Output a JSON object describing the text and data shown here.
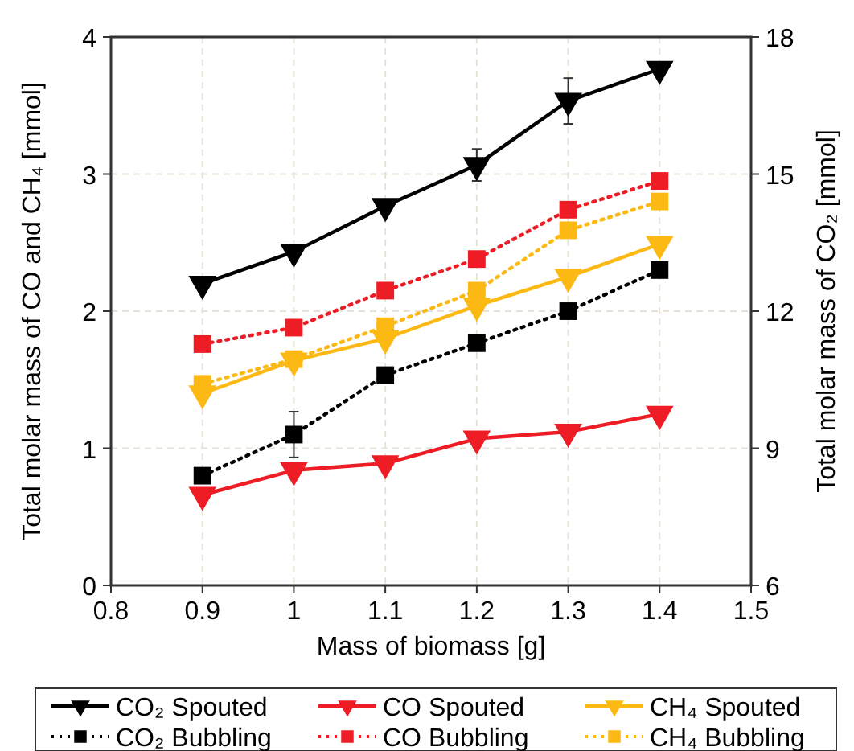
{
  "chart_data": {
    "type": "line",
    "xlabel": "Mass of biomass [g]",
    "ylabel": "Total molar mass of CO and CH₄ [mmol]",
    "y2label": "Total molar mass of CO₂ [mmol]",
    "x": [
      0.9,
      1.0,
      1.1,
      1.2,
      1.3,
      1.4
    ],
    "xlim": [
      0.8,
      1.5
    ],
    "xticks": [
      0.8,
      0.9,
      1,
      1.1,
      1.2,
      1.3,
      1.4,
      1.5
    ],
    "ylim": [
      0,
      4
    ],
    "yticks": [
      0,
      1,
      2,
      3,
      4
    ],
    "y2lim": [
      6,
      18
    ],
    "y2ticks": [
      6,
      9,
      12,
      15,
      18
    ],
    "grid": true,
    "legend": "bottom",
    "series": [
      {
        "name": "CO₂ Spouted",
        "color": "#000000",
        "axis": "y2",
        "marker": "triangle",
        "line_style": "solid",
        "values": [
          12.6,
          13.3,
          14.3,
          15.2,
          16.6,
          17.3
        ],
        "errors": [
          null,
          null,
          null,
          0.35,
          0.5,
          null
        ]
      },
      {
        "name": "CO Spouted",
        "color": "#ee1c25",
        "marker": "triangle",
        "line_style": "solid",
        "values": [
          0.66,
          0.84,
          0.89,
          1.07,
          1.12,
          1.25
        ]
      },
      {
        "name": "CH₄ Spouted",
        "color": "#fdb913",
        "marker": "triangle",
        "line_style": "solid",
        "values": [
          1.4,
          1.64,
          1.8,
          2.04,
          2.25,
          2.49
        ]
      },
      {
        "name": "CO₂ Bubbling",
        "color": "#000000",
        "axis": "y2",
        "marker": "square",
        "line_style": "dotted",
        "values": [
          8.4,
          9.3,
          10.6,
          11.3,
          12.0,
          12.9
        ],
        "errors": [
          null,
          0.5,
          null,
          null,
          null,
          null
        ]
      },
      {
        "name": "CO Bubbling",
        "color": "#ee1c25",
        "marker": "square",
        "line_style": "dotted",
        "values": [
          1.76,
          1.88,
          2.15,
          2.38,
          2.74,
          2.95
        ]
      },
      {
        "name": "CH₄ Bubbling",
        "color": "#fdb913",
        "marker": "square",
        "line_style": "dotted",
        "values": [
          1.47,
          1.65,
          1.89,
          2.15,
          2.59,
          2.8
        ]
      }
    ]
  }
}
